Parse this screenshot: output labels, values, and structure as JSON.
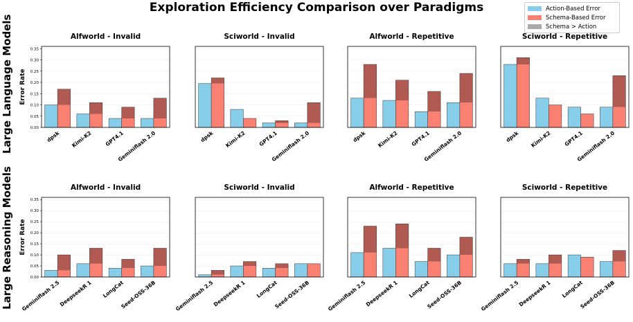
{
  "title": "Exploration Efficiency Comparison over Paradigms",
  "row_labels": [
    "Large Language Models",
    "Large Reasoning Models"
  ],
  "ylabel": "Error Rate",
  "legend": [
    {
      "label": "Action-Based Error",
      "color": "#87CEEB"
    },
    {
      "label": "Schema-Based Error",
      "color": "#FA8072"
    },
    {
      "label": "Schema > Action",
      "color": "#A9A9A9"
    }
  ],
  "colors": {
    "action": "#87CEEB",
    "schema": "#FA8072",
    "excess": "#B05A52",
    "grid": "#dddddd"
  },
  "chart_data": [
    {
      "type": "bar",
      "title": "Alfworld - Invalid",
      "categories": [
        "dpsk",
        "Kimi-K2",
        "GPT4.1",
        "Geminiflash 2.0"
      ],
      "series": [
        {
          "name": "Action-Based Error",
          "values": [
            0.1,
            0.06,
            0.04,
            0.04
          ]
        },
        {
          "name": "Schema-Based Error",
          "values": [
            0.17,
            0.11,
            0.09,
            0.13
          ]
        }
      ],
      "ylim": [
        0,
        0.36
      ],
      "yticks": [
        "0.00",
        "0.05",
        "0.10",
        "0.15",
        "0.20",
        "0.25",
        "0.30",
        "0.35"
      ]
    },
    {
      "type": "bar",
      "title": "Sciworld - Invalid",
      "categories": [
        "dpsk",
        "Kimi-K2",
        "GPT4.1",
        "Geminiflash 2.0"
      ],
      "series": [
        {
          "name": "Action-Based Error",
          "values": [
            0.195,
            0.08,
            0.02,
            0.02
          ]
        },
        {
          "name": "Schema-Based Error",
          "values": [
            0.22,
            0.04,
            0.03,
            0.11
          ]
        }
      ],
      "ylim": [
        0,
        0.36
      ],
      "yticks": []
    },
    {
      "type": "bar",
      "title": "Alfworld - Repetitive",
      "categories": [
        "dpsk",
        "Kimi-K2",
        "GPT4.1",
        "Geminiflash 2.0"
      ],
      "series": [
        {
          "name": "Action-Based Error",
          "values": [
            0.13,
            0.12,
            0.07,
            0.11
          ]
        },
        {
          "name": "Schema-Based Error",
          "values": [
            0.28,
            0.21,
            0.16,
            0.24
          ]
        }
      ],
      "ylim": [
        0,
        0.36
      ],
      "yticks": []
    },
    {
      "type": "bar",
      "title": "Sciworld - Repetitive",
      "categories": [
        "dpsk",
        "Kimi-K2",
        "GPT4.1",
        "Geminiflash 2.0"
      ],
      "series": [
        {
          "name": "Action-Based Error",
          "values": [
            0.28,
            0.13,
            0.09,
            0.09
          ]
        },
        {
          "name": "Schema-Based Error",
          "values": [
            0.31,
            0.1,
            0.06,
            0.23
          ]
        }
      ],
      "ylim": [
        0,
        0.36
      ],
      "yticks": []
    },
    {
      "type": "bar",
      "title": "Alfworld - Invalid",
      "categories": [
        "Geminiflash 2.5",
        "DeepseekR 1",
        "LongCat",
        "Seed-OSS-36B"
      ],
      "series": [
        {
          "name": "Action-Based Error",
          "values": [
            0.03,
            0.06,
            0.04,
            0.05
          ]
        },
        {
          "name": "Schema-Based Error",
          "values": [
            0.1,
            0.13,
            0.08,
            0.13
          ]
        }
      ],
      "ylim": [
        0,
        0.36
      ],
      "yticks": [
        "0.00",
        "0.05",
        "0.10",
        "0.15",
        "0.20",
        "0.25",
        "0.30",
        "0.35"
      ]
    },
    {
      "type": "bar",
      "title": "Sciworld - Invalid",
      "categories": [
        "Geminiflash 2.5",
        "DeepseekR 1",
        "LongCat",
        "Seed-OSS-36B"
      ],
      "series": [
        {
          "name": "Action-Based Error",
          "values": [
            0.01,
            0.05,
            0.04,
            0.06
          ]
        },
        {
          "name": "Schema-Based Error",
          "values": [
            0.03,
            0.07,
            0.06,
            0.06
          ]
        }
      ],
      "ylim": [
        0,
        0.36
      ],
      "yticks": []
    },
    {
      "type": "bar",
      "title": "Alfworld - Repetitive",
      "categories": [
        "Geminiflash 2.5",
        "DeepseekR 1",
        "LongCat",
        "Seed-OSS-36B"
      ],
      "series": [
        {
          "name": "Action-Based Error",
          "values": [
            0.11,
            0.13,
            0.07,
            0.1
          ]
        },
        {
          "name": "Schema-Based Error",
          "values": [
            0.23,
            0.24,
            0.13,
            0.18
          ]
        }
      ],
      "ylim": [
        0,
        0.36
      ],
      "yticks": []
    },
    {
      "type": "bar",
      "title": "Sciworld - Repetitive",
      "categories": [
        "Geminiflash 2.5",
        "DeepseekR 1",
        "LongCat",
        "Seed-OSS-36B"
      ],
      "series": [
        {
          "name": "Action-Based Error",
          "values": [
            0.06,
            0.06,
            0.1,
            0.07
          ]
        },
        {
          "name": "Schema-Based Error",
          "values": [
            0.08,
            0.1,
            0.09,
            0.12
          ]
        }
      ],
      "ylim": [
        0,
        0.36
      ],
      "yticks": []
    }
  ]
}
